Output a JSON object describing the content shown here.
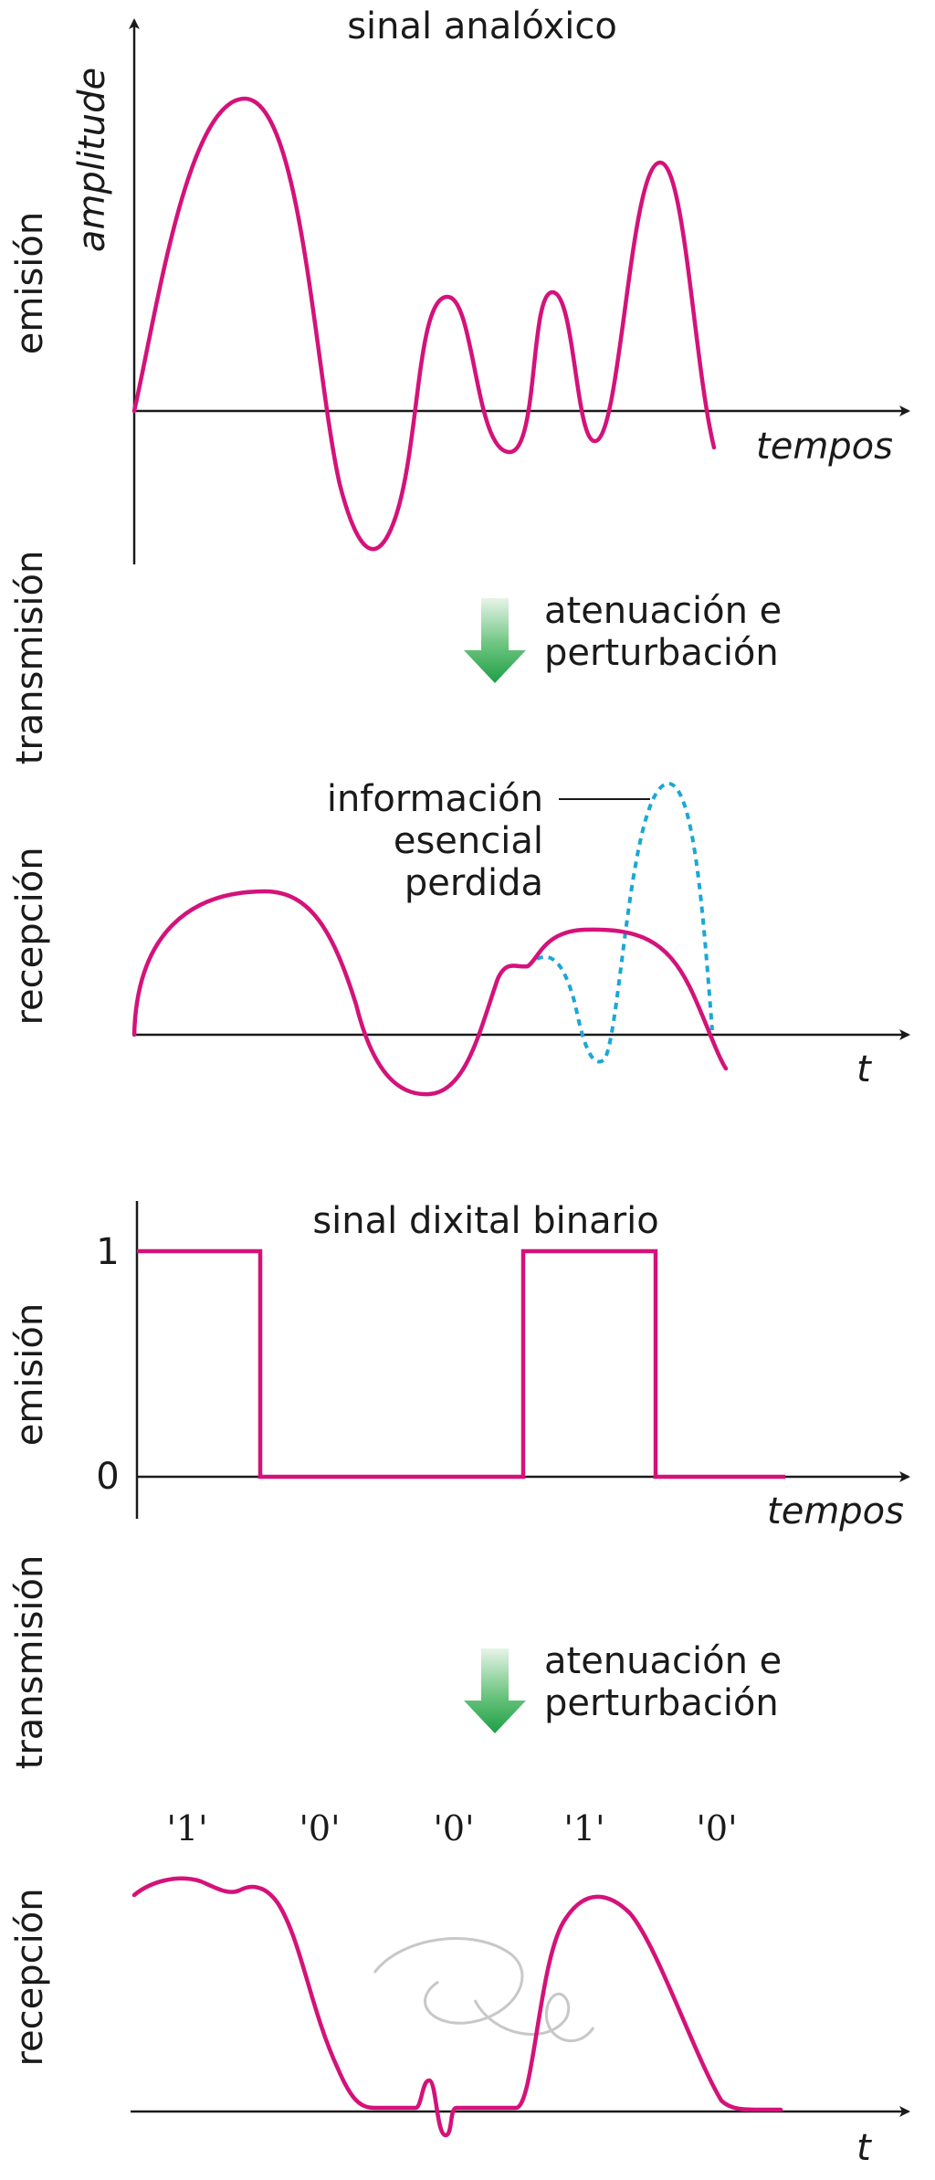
{
  "colors": {
    "signal": "#d4127a",
    "lost_signal": "#1aa7d6",
    "arrow": "#1e9e46",
    "axis": "#1a1a1a"
  },
  "analog": {
    "title": "sinal analóxico",
    "y_axis_label": "amplitude",
    "x_axis_label": "tempos",
    "stage_emission": "emisión",
    "stage_transmission": "transmisión",
    "stage_reception": "recepción",
    "arrow_icon": "gradient-down-arrow-icon",
    "arrow_caption_line1": "atenuación e",
    "arrow_caption_line2": "perturbación",
    "lost_label_line1": "información",
    "lost_label_line2": "esencial",
    "lost_label_line3": "perdida",
    "reception_x_label": "t"
  },
  "digital": {
    "title": "sinal dixital binario",
    "y_tick_high": "1",
    "y_tick_low": "0",
    "x_axis_label": "tempos",
    "stage_emission": "emisión",
    "stage_transmission": "transmisión",
    "stage_reception": "recepción",
    "arrow_icon": "gradient-down-arrow-icon",
    "arrow_caption_line1": "atenuación e",
    "arrow_caption_line2": "perturbación",
    "bits": [
      "'1'",
      "'0'",
      "'0'",
      "'1'",
      "'0'"
    ],
    "levels": [
      1,
      0,
      0,
      1,
      0
    ],
    "reception_x_label": "t"
  }
}
